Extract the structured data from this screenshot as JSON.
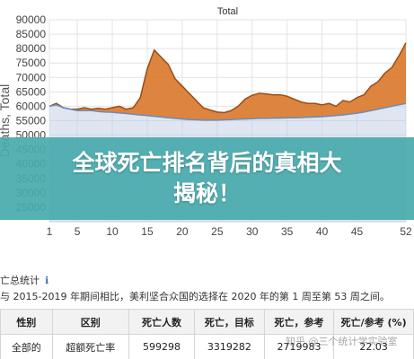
{
  "chart_data": {
    "type": "area",
    "title": "Total",
    "ylabel": "Deaths, Total",
    "ylim": [
      20000,
      90000
    ],
    "yticks": [
      25000,
      30000,
      35000,
      40000,
      45000,
      50000,
      55000,
      60000,
      65000,
      70000,
      75000,
      80000,
      85000,
      90000
    ],
    "xlim": [
      1,
      52
    ],
    "xticks": [
      1,
      5,
      10,
      15,
      20,
      25,
      30,
      35,
      40,
      45,
      52
    ],
    "grid": true,
    "series": [
      {
        "role": "expected",
        "color": "#b8c8e0",
        "x": [
          1,
          2,
          3,
          4,
          5,
          6,
          7,
          8,
          9,
          10,
          11,
          12,
          13,
          14,
          15,
          16,
          17,
          18,
          19,
          20,
          21,
          22,
          23,
          24,
          25,
          26,
          27,
          28,
          29,
          30,
          31,
          32,
          33,
          34,
          35,
          36,
          37,
          38,
          39,
          40,
          41,
          42,
          43,
          44,
          45,
          46,
          47,
          48,
          49,
          50,
          51,
          52
        ],
        "values": [
          60000,
          60500,
          59500,
          59000,
          58500,
          58500,
          58500,
          58200,
          58000,
          57900,
          57700,
          57500,
          57200,
          57000,
          56800,
          56500,
          56300,
          56000,
          55800,
          55600,
          55400,
          55300,
          55200,
          55200,
          55200,
          55300,
          55400,
          55500,
          55600,
          55700,
          55800,
          55800,
          55900,
          55900,
          56000,
          56000,
          56100,
          56200,
          56300,
          56400,
          56600,
          56800,
          57000,
          57300,
          57600,
          58000,
          58500,
          59000,
          59500,
          60000,
          60500,
          61000
        ]
      },
      {
        "role": "observed",
        "color": "#d9772a",
        "x": [
          1,
          2,
          3,
          4,
          5,
          6,
          7,
          8,
          9,
          10,
          11,
          12,
          13,
          14,
          15,
          16,
          17,
          18,
          19,
          20,
          21,
          22,
          23,
          24,
          25,
          26,
          27,
          28,
          29,
          30,
          31,
          32,
          33,
          34,
          35,
          36,
          37,
          38,
          39,
          40,
          41,
          42,
          43,
          44,
          45,
          46,
          47,
          48,
          49,
          50,
          51,
          52
        ],
        "values": [
          60000,
          61000,
          59500,
          59000,
          59000,
          59500,
          59000,
          59300,
          59000,
          59500,
          60000,
          59000,
          59500,
          63000,
          73000,
          79500,
          77000,
          74500,
          69500,
          67000,
          64500,
          62000,
          59500,
          58700,
          58000,
          57800,
          58500,
          60000,
          62500,
          63800,
          64500,
          64300,
          64000,
          64000,
          63500,
          62500,
          61500,
          61000,
          61000,
          60500,
          61000,
          60000,
          62000,
          61500,
          63000,
          64000,
          67000,
          68500,
          71500,
          73500,
          77500,
          82000
        ]
      }
    ]
  },
  "banner": {
    "line1": "全球死亡排名背后的真相大",
    "line2": "揭秘！"
  },
  "stats": {
    "title": "亡总统计",
    "info_icon": "info-icon",
    "description": "与 2015-2019 年期间相比，美利坚合众国的选择在 2020 年的第 1 周至第 53 周之间。",
    "headers": [
      "性别",
      "区别",
      "死亡人数",
      "死亡，目标",
      "死亡，参考",
      "死亡/参考 (%)"
    ],
    "rows": [
      [
        "全部的",
        "超额死亡率",
        "599298",
        "3319282",
        "2719983",
        "22.03"
      ]
    ]
  },
  "watermark": "知乎 @三个统计学实验室"
}
